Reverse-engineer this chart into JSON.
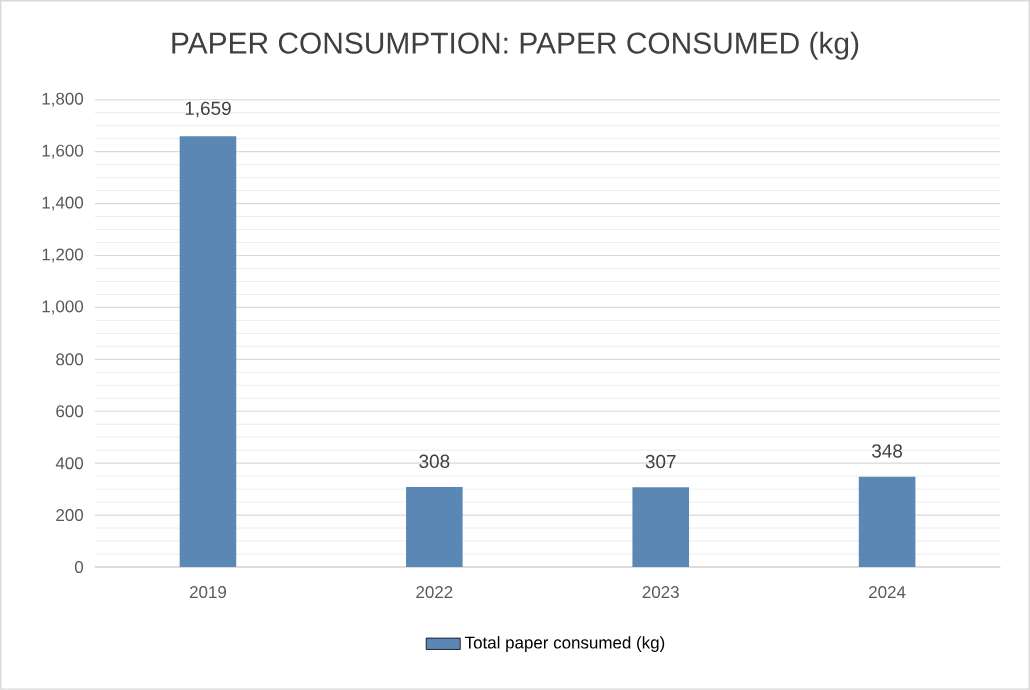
{
  "chart_data": {
    "type": "bar",
    "title": "PAPER CONSUMPTION: PAPER CONSUMED (kg)",
    "categories": [
      "2019",
      "2022",
      "2023",
      "2024"
    ],
    "series": [
      {
        "name": "Total paper consumed (kg)",
        "color": "#5b87b5",
        "values": [
          1659,
          308,
          307,
          348
        ],
        "value_labels": [
          "1,659",
          "308",
          "307",
          "348"
        ]
      }
    ],
    "ylim": [
      0,
      1800
    ],
    "yticks": [
      {
        "value": 0,
        "label": "0"
      },
      {
        "value": 200,
        "label": "200"
      },
      {
        "value": 400,
        "label": "400"
      },
      {
        "value": 600,
        "label": "600"
      },
      {
        "value": 800,
        "label": "800"
      },
      {
        "value": 1000,
        "label": "1,000"
      },
      {
        "value": 1200,
        "label": "1,200"
      },
      {
        "value": 1400,
        "label": "1,400"
      },
      {
        "value": 1600,
        "label": "1,600"
      },
      {
        "value": 1800,
        "label": "1,800"
      }
    ],
    "grid": "y",
    "legend": "bottom"
  }
}
